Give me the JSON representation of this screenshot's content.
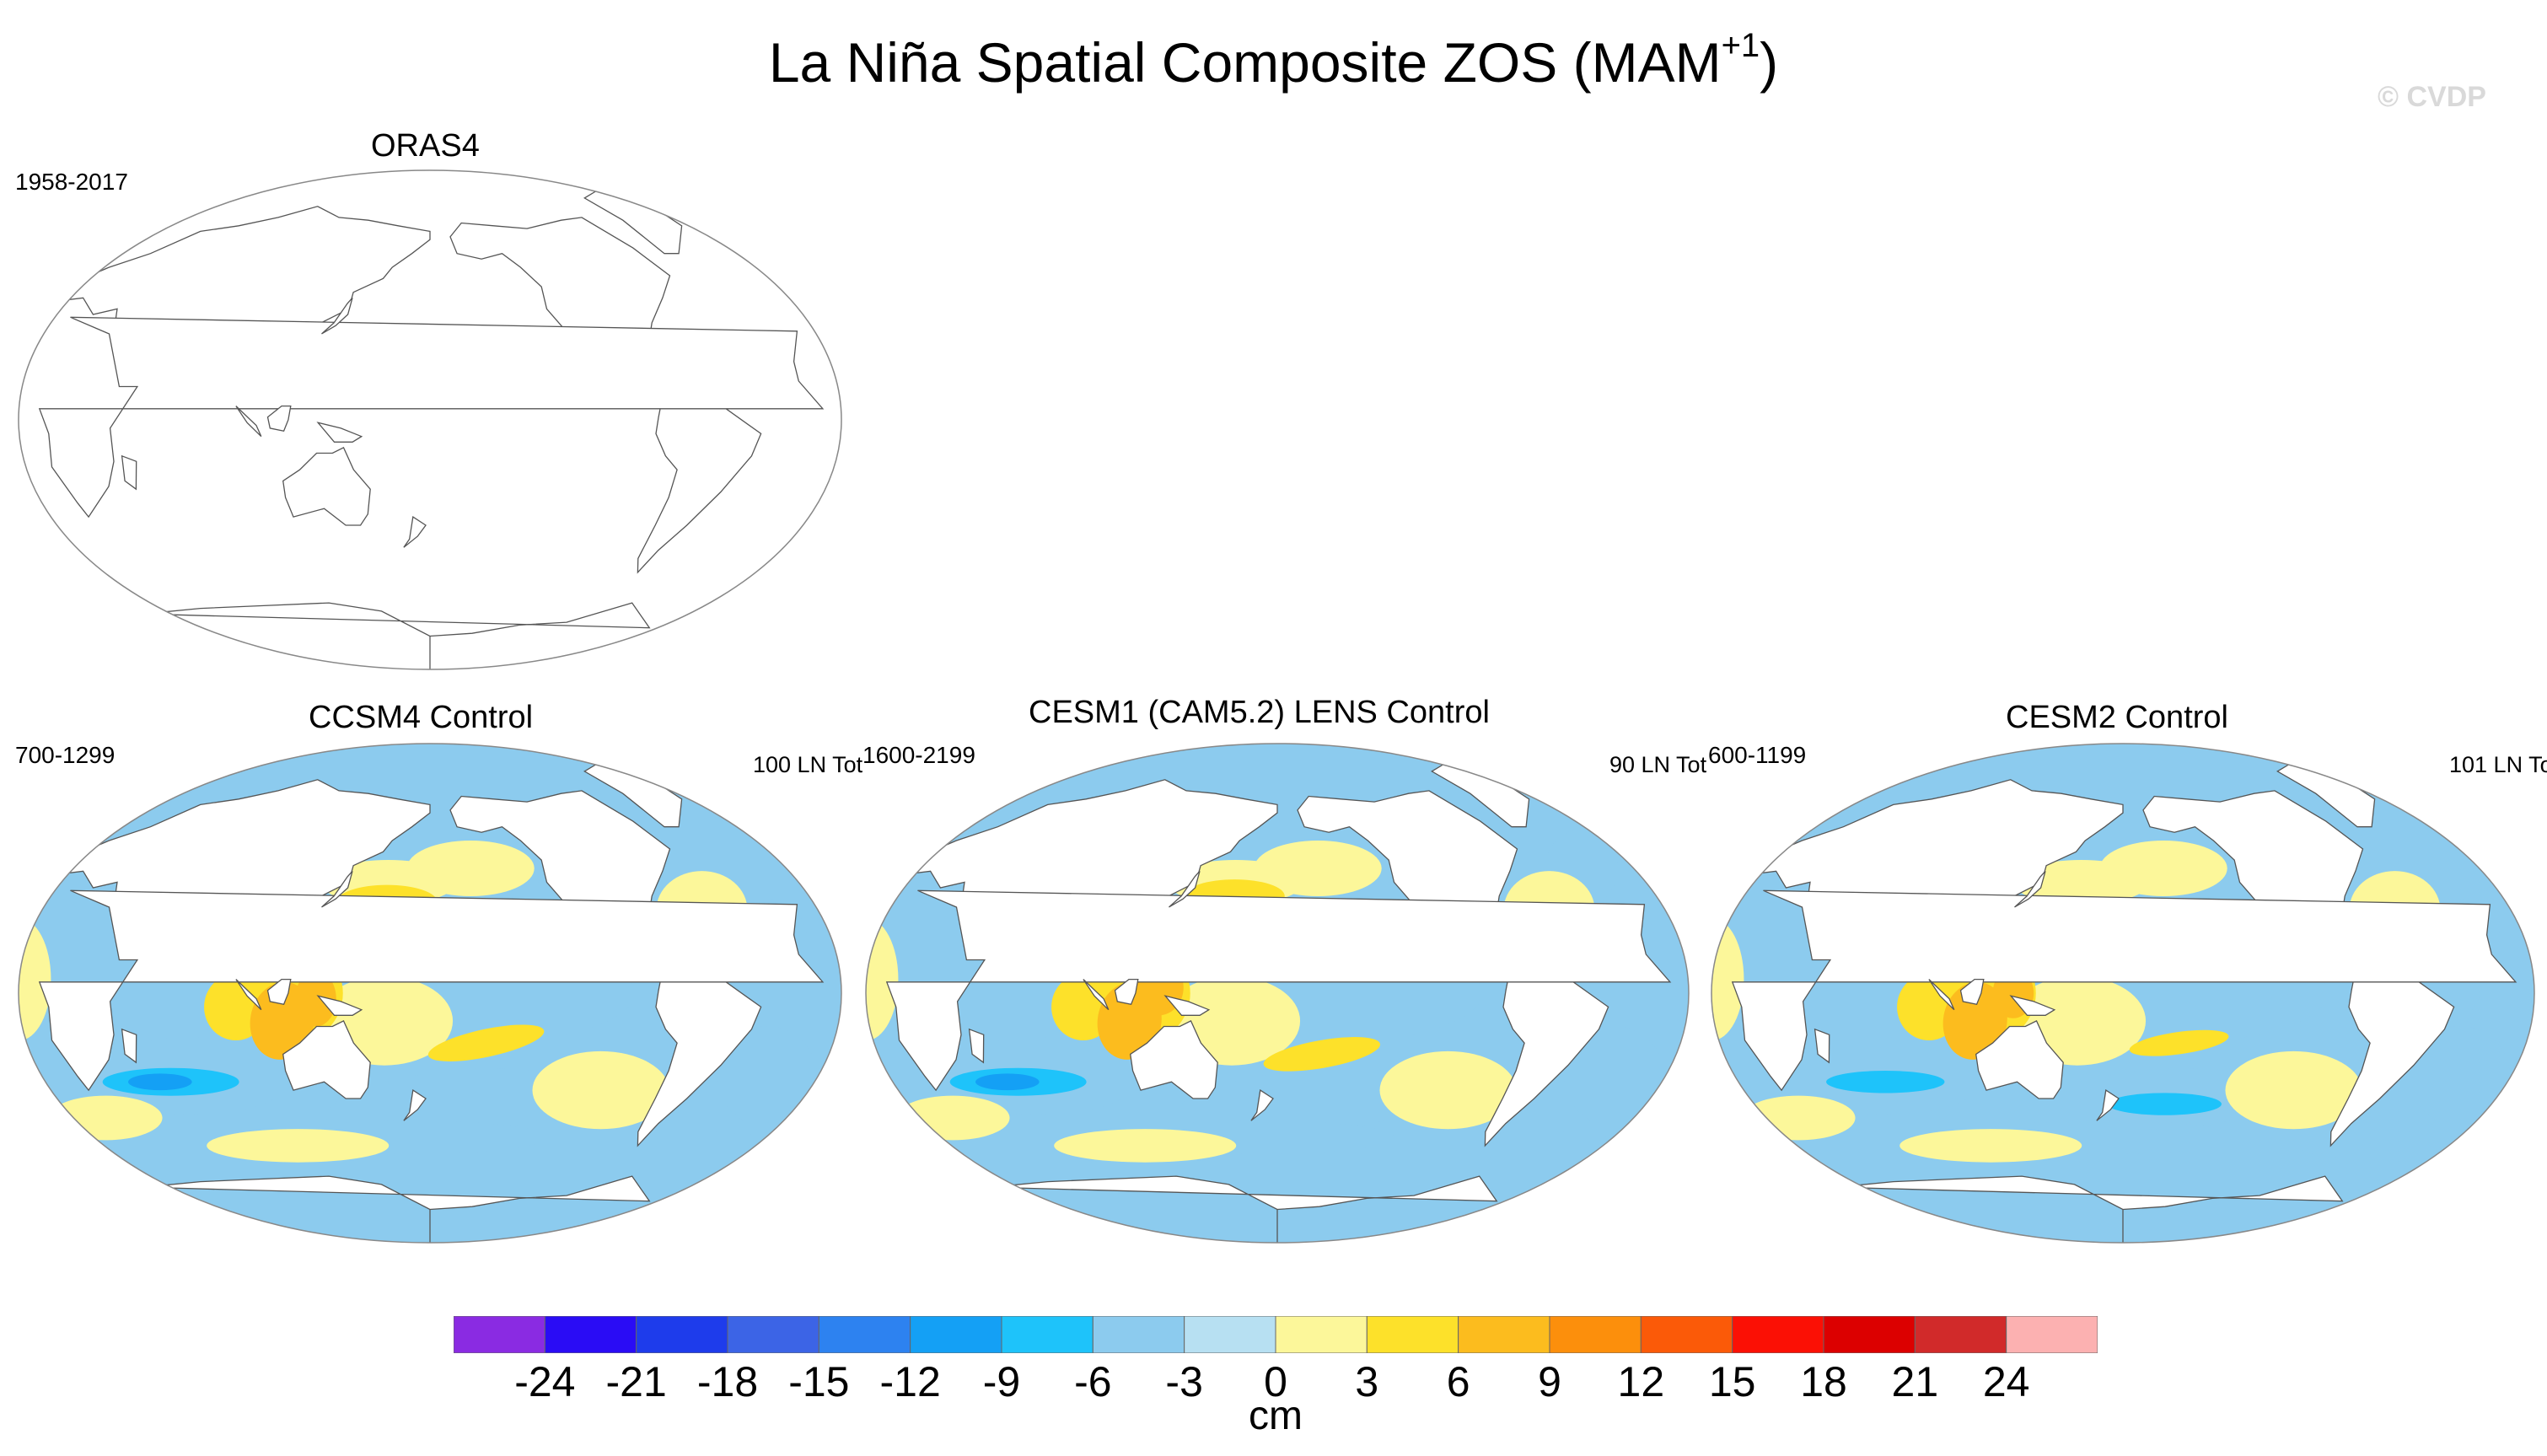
{
  "figure": {
    "title": "La Niña Spatial Composite ZOS (MAM",
    "title_superscript": "+1",
    "title_suffix": ")",
    "watermark": "© CVDP"
  },
  "panels": [
    {
      "name": "ORAS4",
      "period": "1958-2017",
      "count": "",
      "has_data": false
    },
    {
      "name": "CCSM4 Control",
      "period": "700-1299",
      "count": "100 LN Tot",
      "has_data": true
    },
    {
      "name": "CESM1 (CAM5.2) LENS Control",
      "period": "1600-2199",
      "count": "90 LN Tot",
      "has_data": true
    },
    {
      "name": "CESM2 Control",
      "period": "600-1199",
      "count": "101 LN To",
      "has_data": true
    }
  ],
  "colorbar": {
    "units": "cm",
    "tick_labels": [
      "-24",
      "-21",
      "-18",
      "-15",
      "-12",
      "-9",
      "-6",
      "-3",
      "0",
      "3",
      "6",
      "9",
      "12",
      "15",
      "18",
      "21",
      "24"
    ],
    "colors": [
      "#8a2be2",
      "#2a0cf5",
      "#1e3ceb",
      "#3c64e6",
      "#2d82f0",
      "#14a0f5",
      "#1ec3fa",
      "#8ccbee",
      "#b7e0f2",
      "#fcf79a",
      "#fde12a",
      "#fcbc1e",
      "#fc8f0c",
      "#fb5a08",
      "#fb1005",
      "#dc0000",
      "#d12a2a",
      "#fcb1b1"
    ]
  },
  "chart_data": {
    "type": "map",
    "variable": "ZOS",
    "season": "MAM+1",
    "composite": "La Niña",
    "units": "cm",
    "contour_levels": [
      -24,
      -21,
      -18,
      -15,
      -12,
      -9,
      -6,
      -3,
      0,
      3,
      6,
      9,
      12,
      15,
      18,
      21,
      24
    ],
    "panels": [
      "ORAS4",
      "CCSM4 Control",
      "CESM1 (CAM5.2) LENS Control",
      "CESM2 Control"
    ]
  }
}
